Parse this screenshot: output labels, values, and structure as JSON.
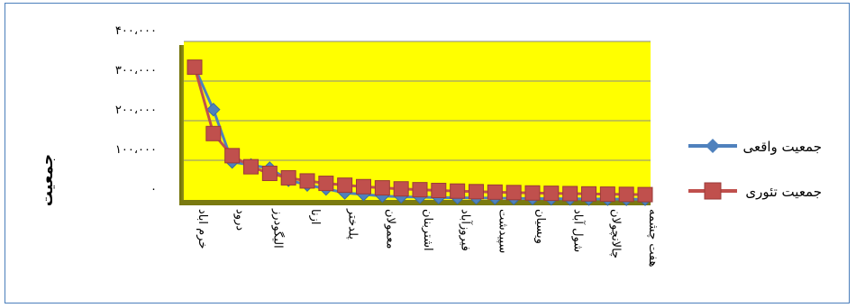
{
  "chart_data": {
    "type": "line",
    "title": "",
    "xlabel": "",
    "ylabel": "جمعیت",
    "ylim": [
      0,
      400000
    ],
    "y_ticks": [
      "۰",
      "۱۰۰،۰۰۰",
      "۲۰۰،۰۰۰",
      "۳۰۰،۰۰۰",
      "۴۰۰،۰۰۰"
    ],
    "y_tick_values": [
      0,
      100000,
      200000,
      300000,
      400000
    ],
    "grid": true,
    "legend_position": "right",
    "x_tick_labels": [
      "خرم اباد",
      "درود",
      "الیگودرز",
      "ازنا",
      "پلدختر",
      "معمولان",
      "اشتربنان",
      "فیروزآباد",
      "سپیدشت",
      "ویسیان",
      "شول آباد",
      "چالانچولان",
      "هفت چشمه"
    ],
    "num_points": 25,
    "series": [
      {
        "name": "جمعیت واقعی",
        "color": "#4f81bd",
        "marker": "diamond",
        "values": [
          335000,
          228000,
          96000,
          88000,
          80000,
          50000,
          38000,
          28000,
          18000,
          14000,
          10000,
          8000,
          7000,
          6000,
          5500,
          5000,
          4500,
          4000,
          3500,
          3000,
          2800,
          2500,
          2200,
          2000,
          1800
        ]
      },
      {
        "name": "جمعیت تئوری",
        "color": "#c0504d",
        "marker": "square",
        "values": [
          335000,
          167500,
          111700,
          83750,
          67000,
          55800,
          47900,
          41900,
          37200,
          33500,
          30500,
          27900,
          25800,
          23900,
          22300,
          20900,
          19700,
          18600,
          17600,
          16750,
          15950,
          15200,
          14600,
          14000,
          13400
        ]
      }
    ]
  }
}
